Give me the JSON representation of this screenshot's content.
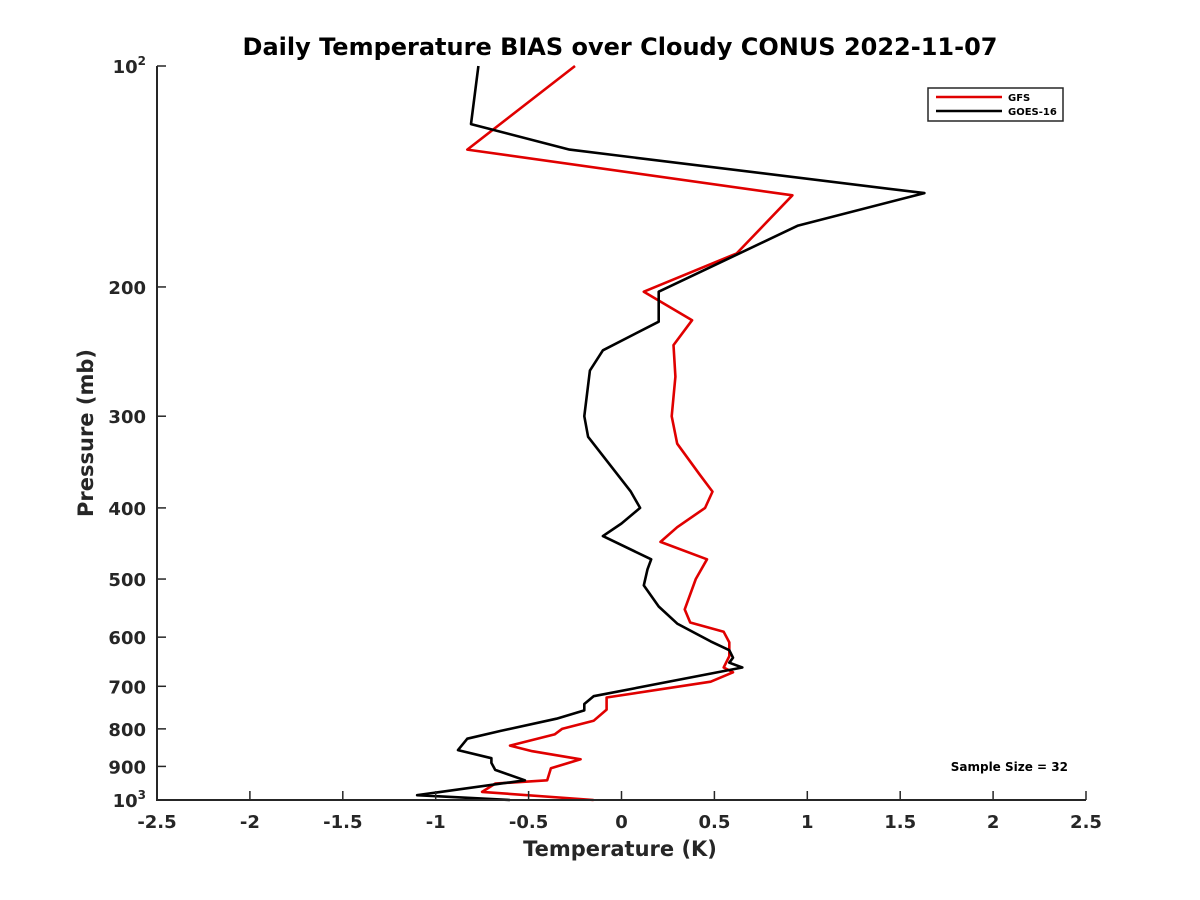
{
  "chart_data": {
    "type": "line",
    "title": "Daily Temperature BIAS over Cloudy CONUS 2022-11-07",
    "xlabel": "Temperature (K)",
    "ylabel": "Pressure (mb)",
    "xlim": [
      -2.5,
      2.5
    ],
    "ylim": [
      1000,
      100
    ],
    "y_scale": "log",
    "y_reversed": true,
    "grid": false,
    "x_ticks": [
      {
        "value": -2.5,
        "label": "-2.5"
      },
      {
        "value": -2,
        "label": "-2"
      },
      {
        "value": -1.5,
        "label": "-1.5"
      },
      {
        "value": -1,
        "label": "-1"
      },
      {
        "value": -0.5,
        "label": "-0.5"
      },
      {
        "value": 0,
        "label": "0"
      },
      {
        "value": 0.5,
        "label": "0.5"
      },
      {
        "value": 1,
        "label": "1"
      },
      {
        "value": 1.5,
        "label": "1.5"
      },
      {
        "value": 2,
        "label": "2"
      },
      {
        "value": 2.5,
        "label": "2.5"
      }
    ],
    "y_ticks": [
      {
        "value": 100,
        "label": "10",
        "sup": "2"
      },
      {
        "value": 200,
        "label": "200",
        "sup": ""
      },
      {
        "value": 300,
        "label": "300",
        "sup": ""
      },
      {
        "value": 400,
        "label": "400",
        "sup": ""
      },
      {
        "value": 500,
        "label": "500",
        "sup": ""
      },
      {
        "value": 600,
        "label": "600",
        "sup": ""
      },
      {
        "value": 700,
        "label": "700",
        "sup": ""
      },
      {
        "value": 800,
        "label": "800",
        "sup": ""
      },
      {
        "value": 900,
        "label": "900",
        "sup": ""
      },
      {
        "value": 1000,
        "label": "10",
        "sup": "3"
      }
    ],
    "legend_position": "top-right",
    "series": [
      {
        "name": "GFS",
        "color": "#e00000",
        "points": [
          [
            -0.25,
            100
          ],
          [
            -0.83,
            130
          ],
          [
            0.92,
            150
          ],
          [
            0.62,
            180
          ],
          [
            0.12,
            203
          ],
          [
            0.38,
            222
          ],
          [
            0.28,
            240
          ],
          [
            0.29,
            265
          ],
          [
            0.27,
            300
          ],
          [
            0.3,
            327
          ],
          [
            0.42,
            360
          ],
          [
            0.49,
            380
          ],
          [
            0.45,
            400
          ],
          [
            0.3,
            425
          ],
          [
            0.21,
            445
          ],
          [
            0.46,
            470
          ],
          [
            0.4,
            500
          ],
          [
            0.34,
            550
          ],
          [
            0.37,
            573
          ],
          [
            0.55,
            590
          ],
          [
            0.58,
            610
          ],
          [
            0.58,
            637
          ],
          [
            0.55,
            660
          ],
          [
            0.6,
            670
          ],
          [
            0.48,
            690
          ],
          [
            -0.08,
            725
          ],
          [
            -0.08,
            753
          ],
          [
            -0.15,
            780
          ],
          [
            -0.32,
            800
          ],
          [
            -0.36,
            814
          ],
          [
            -0.6,
            843
          ],
          [
            -0.48,
            858
          ],
          [
            -0.22,
            880
          ],
          [
            -0.38,
            905
          ],
          [
            -0.4,
            940
          ],
          [
            -0.68,
            950
          ],
          [
            -0.75,
            975
          ],
          [
            -0.15,
            1000
          ]
        ]
      },
      {
        "name": "GOES-16",
        "color": "#000000",
        "points": [
          [
            -0.77,
            100
          ],
          [
            -0.81,
            120
          ],
          [
            -0.28,
            130
          ],
          [
            1.63,
            149
          ],
          [
            0.95,
            165
          ],
          [
            0.2,
            203
          ],
          [
            0.2,
            223
          ],
          [
            -0.1,
            244
          ],
          [
            -0.17,
            260
          ],
          [
            -0.2,
            300
          ],
          [
            -0.18,
            320
          ],
          [
            0.05,
            380
          ],
          [
            0.1,
            400
          ],
          [
            0.0,
            420
          ],
          [
            -0.1,
            437
          ],
          [
            0.16,
            470
          ],
          [
            0.14,
            485
          ],
          [
            0.12,
            510
          ],
          [
            0.2,
            545
          ],
          [
            0.3,
            575
          ],
          [
            0.48,
            608
          ],
          [
            0.58,
            625
          ],
          [
            0.6,
            640
          ],
          [
            0.58,
            650
          ],
          [
            0.65,
            660
          ],
          [
            -0.15,
            722
          ],
          [
            -0.2,
            740
          ],
          [
            -0.2,
            755
          ],
          [
            -0.35,
            775
          ],
          [
            -0.65,
            805
          ],
          [
            -0.83,
            825
          ],
          [
            -0.88,
            855
          ],
          [
            -0.7,
            877
          ],
          [
            -0.7,
            890
          ],
          [
            -0.68,
            910
          ],
          [
            -0.52,
            940
          ],
          [
            -1.1,
            985
          ],
          [
            -0.6,
            1000
          ]
        ]
      }
    ],
    "annotations": [
      {
        "text": "Sample Size = 32",
        "position": "bottom-right"
      }
    ]
  }
}
